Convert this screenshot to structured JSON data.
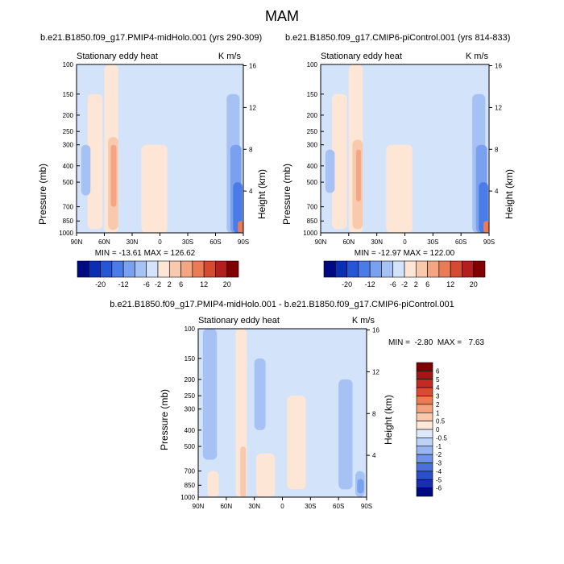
{
  "main_title": "MAM",
  "chart_data": [
    {
      "type": "heatmap",
      "title": "b.e21.B1850.f09_g17.PMIP4-midHolo.001 (yrs 290-309)",
      "subtitle_left": "Stationary eddy heat",
      "subtitle_right": "K m/s",
      "xlabel": "",
      "ylabel": "Pressure (mb)",
      "ylabel_right": "Height (km)",
      "x_ticks": [
        "90N",
        "60N",
        "30N",
        "0",
        "30S",
        "60S",
        "90S"
      ],
      "y_ticks": [
        "100",
        "150",
        "200",
        "250",
        "300",
        "400",
        "500",
        "700",
        "850",
        "1000"
      ],
      "y_right_ticks": [
        "16",
        "12",
        "8",
        "4"
      ],
      "stats": "MIN = -13.61  MAX = 126.62",
      "colorbar_labels": [
        "-20",
        "-12",
        "-6",
        "-2",
        "2",
        "6",
        "12",
        "20"
      ],
      "colorbar_colors": [
        "#000a80",
        "#0b2fb3",
        "#2456d6",
        "#4a7be8",
        "#7aa0f0",
        "#a6c2f5",
        "#d3e4fa",
        "#fde6d6",
        "#f9c9ad",
        "#f4a582",
        "#ea7b56",
        "#d74a32",
        "#b31e1e",
        "#800000"
      ],
      "features": [
        {
          "x": [
            -78,
            -62
          ],
          "p": [
            150,
            950
          ],
          "level": 1
        },
        {
          "x": [
            -60,
            -45
          ],
          "p": [
            100,
            1000
          ],
          "level": 1
        },
        {
          "x": [
            -56,
            -45
          ],
          "p": [
            270,
            960
          ],
          "level": 2
        },
        {
          "x": [
            -53,
            -47
          ],
          "p": [
            300,
            700
          ],
          "level": 3
        },
        {
          "x": [
            -85,
            -75
          ],
          "p": [
            300,
            600
          ],
          "level": -1
        },
        {
          "x": [
            -20,
            8
          ],
          "p": [
            300,
            1000
          ],
          "level": 1
        },
        {
          "x": [
            72,
            86
          ],
          "p": [
            150,
            1000
          ],
          "level": -1
        },
        {
          "x": [
            76,
            88
          ],
          "p": [
            300,
            1000
          ],
          "level": -2
        },
        {
          "x": [
            79,
            89
          ],
          "p": [
            500,
            1000
          ],
          "level": -3
        },
        {
          "x": [
            84,
            90
          ],
          "p": [
            850,
            1000
          ],
          "level": 4
        }
      ]
    },
    {
      "type": "heatmap",
      "title": "b.e21.B1850.f09_g17.CMIP6-piControl.001 (yrs 814-833)",
      "subtitle_left": "Stationary eddy heat",
      "subtitle_right": "K m/s",
      "xlabel": "",
      "ylabel": "Pressure (mb)",
      "ylabel_right": "Height (km)",
      "x_ticks": [
        "90N",
        "60N",
        "30N",
        "0",
        "30S",
        "60S",
        "90S"
      ],
      "y_ticks": [
        "100",
        "150",
        "200",
        "250",
        "300",
        "400",
        "500",
        "700",
        "850",
        "1000"
      ],
      "y_right_ticks": [
        "16",
        "12",
        "8",
        "4"
      ],
      "stats": "MIN = -12.97  MAX = 122.00",
      "colorbar_labels": [
        "-20",
        "-12",
        "-6",
        "-2",
        "2",
        "6",
        "12",
        "20"
      ],
      "colorbar_colors": [
        "#000a80",
        "#0b2fb3",
        "#2456d6",
        "#4a7be8",
        "#7aa0f0",
        "#a6c2f5",
        "#d3e4fa",
        "#fde6d6",
        "#f9c9ad",
        "#f4a582",
        "#ea7b56",
        "#d74a32",
        "#b31e1e",
        "#800000"
      ],
      "features": [
        {
          "x": [
            -78,
            -62
          ],
          "p": [
            150,
            950
          ],
          "level": 1
        },
        {
          "x": [
            -60,
            -45
          ],
          "p": [
            100,
            1000
          ],
          "level": 1
        },
        {
          "x": [
            -56,
            -45
          ],
          "p": [
            280,
            950
          ],
          "level": 2
        },
        {
          "x": [
            -52,
            -47
          ],
          "p": [
            320,
            650
          ],
          "level": 3
        },
        {
          "x": [
            -85,
            -75
          ],
          "p": [
            320,
            580
          ],
          "level": -1
        },
        {
          "x": [
            -20,
            8
          ],
          "p": [
            300,
            1000
          ],
          "level": 1
        },
        {
          "x": [
            72,
            86
          ],
          "p": [
            150,
            1000
          ],
          "level": -1
        },
        {
          "x": [
            76,
            88
          ],
          "p": [
            300,
            1000
          ],
          "level": -2
        },
        {
          "x": [
            79,
            89
          ],
          "p": [
            500,
            1000
          ],
          "level": -3
        },
        {
          "x": [
            84,
            90
          ],
          "p": [
            850,
            1000
          ],
          "level": 4
        }
      ]
    },
    {
      "type": "heatmap",
      "title": "b.e21.B1850.f09_g17.PMIP4-midHolo.001 - b.e21.B1850.f09_g17.CMIP6-piControl.001",
      "subtitle_left": "Stationary eddy heat",
      "subtitle_right": "K m/s",
      "xlabel": "",
      "ylabel": "Pressure (mb)",
      "ylabel_right": "Height (km)",
      "x_ticks": [
        "90N",
        "60N",
        "30N",
        "0",
        "30S",
        "60S",
        "90S"
      ],
      "y_ticks": [
        "100",
        "150",
        "200",
        "250",
        "300",
        "400",
        "500",
        "700",
        "850",
        "1000"
      ],
      "y_right_ticks": [
        "16",
        "12",
        "8",
        "4"
      ],
      "stats": "MIN =  -2.80  MAX =   7.63",
      "colorbar_labels": [
        "6",
        "5",
        "4",
        "3",
        "2",
        "1",
        "0.5",
        "0",
        "-0.5",
        "-1",
        "-2",
        "-3",
        "-4",
        "-5",
        "-6"
      ],
      "colorbar_colors": [
        "#800000",
        "#a21616",
        "#c42a24",
        "#de4a30",
        "#ec7a52",
        "#f5a27f",
        "#fac8ac",
        "#fde8da",
        "#deeafb",
        "#bcd2f7",
        "#98b6f1",
        "#6f93e9",
        "#4a70db",
        "#2a4ec8",
        "#1530a8",
        "#000a80"
      ],
      "features": [
        {
          "x": [
            -85,
            -70
          ],
          "p": [
            100,
            600
          ],
          "level": -1
        },
        {
          "x": [
            -50,
            -38
          ],
          "p": [
            100,
            1000
          ],
          "level": 1
        },
        {
          "x": [
            -45,
            -39
          ],
          "p": [
            500,
            1000
          ],
          "level": 2
        },
        {
          "x": [
            -80,
            -68
          ],
          "p": [
            700,
            1000
          ],
          "level": 1
        },
        {
          "x": [
            -30,
            -18
          ],
          "p": [
            150,
            400
          ],
          "level": -1
        },
        {
          "x": [
            -28,
            -8
          ],
          "p": [
            550,
            1000
          ],
          "level": 1
        },
        {
          "x": [
            5,
            25
          ],
          "p": [
            250,
            900
          ],
          "level": 1
        },
        {
          "x": [
            60,
            75
          ],
          "p": [
            200,
            900
          ],
          "level": -1
        },
        {
          "x": [
            78,
            88
          ],
          "p": [
            700,
            1000
          ],
          "level": -1
        },
        {
          "x": [
            80,
            87
          ],
          "p": [
            780,
            950
          ],
          "level": -2
        }
      ]
    }
  ]
}
